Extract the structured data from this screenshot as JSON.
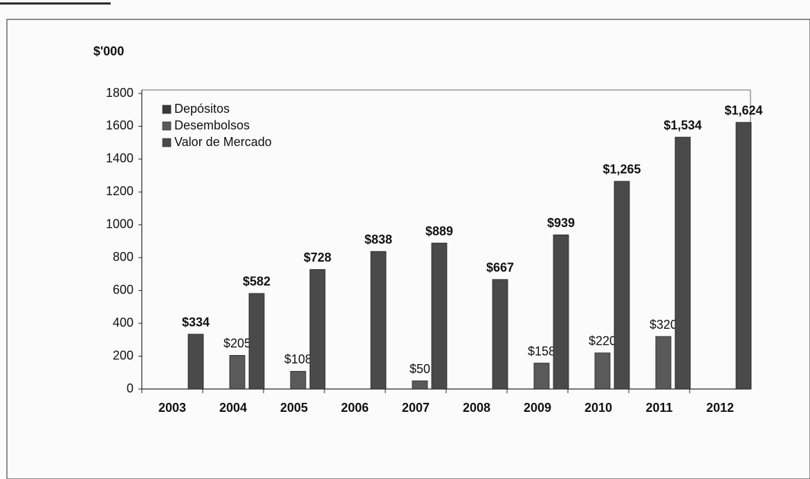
{
  "chart_data": {
    "type": "bar",
    "y_axis_label": "$'000",
    "categories": [
      "2003",
      "2004",
      "2005",
      "2006",
      "2007",
      "2008",
      "2009",
      "2010",
      "2011",
      "2012"
    ],
    "series": [
      {
        "name": "Depósitos",
        "color": "#3a3a3a",
        "values": [
          null,
          null,
          null,
          null,
          null,
          null,
          null,
          null,
          null,
          null
        ]
      },
      {
        "name": "Desembolsos",
        "color": "#5a5a5a",
        "values": [
          null,
          205,
          108,
          null,
          50,
          null,
          158,
          220,
          320,
          null
        ],
        "value_labels": [
          null,
          "$205",
          "$108",
          null,
          "$50",
          null,
          "$158",
          "$220",
          "$320",
          null
        ]
      },
      {
        "name": "Valor de Mercado",
        "color": "#4a4a4a",
        "values": [
          334,
          582,
          728,
          838,
          889,
          667,
          939,
          1265,
          1534,
          1624
        ],
        "value_labels": [
          "$334",
          "$582",
          "$728",
          "$838",
          "$889",
          "$667",
          "$939",
          "$1,265",
          "$1,534",
          "$1,624"
        ]
      }
    ],
    "ylim": [
      0,
      1800
    ],
    "yticks": [
      0,
      200,
      400,
      600,
      800,
      1000,
      1200,
      1400,
      1600,
      1800
    ],
    "grid": false,
    "legend": "upper left"
  }
}
